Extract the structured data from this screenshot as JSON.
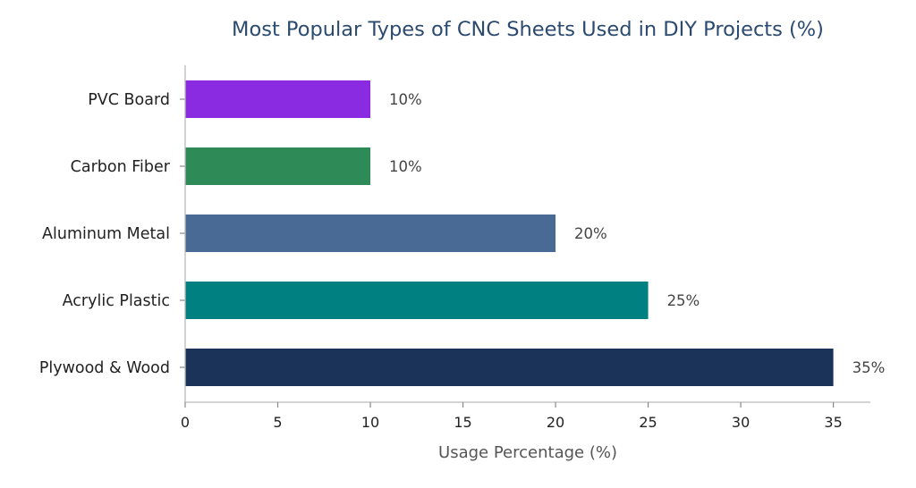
{
  "chart_data": {
    "type": "bar",
    "orientation": "horizontal",
    "title": "Most Popular Types of CNC Sheets Used in DIY Projects (%)",
    "xlabel": "Usage Percentage (%)",
    "ylabel": "",
    "xlim": [
      0,
      37
    ],
    "xticks": [
      0,
      5,
      10,
      15,
      20,
      25,
      30,
      35
    ],
    "categories": [
      "PVC Board",
      "Carbon Fiber",
      "Aluminum Metal",
      "Acrylic Plastic",
      "Plywood & Wood"
    ],
    "values": [
      10,
      10,
      20,
      25,
      35
    ],
    "data_labels": [
      "10%",
      "10%",
      "20%",
      "25%",
      "35%"
    ],
    "colors": [
      "#8a2be2",
      "#2e8b57",
      "#4a6a96",
      "#008080",
      "#1b3358"
    ],
    "grid": false,
    "legend": "none"
  }
}
